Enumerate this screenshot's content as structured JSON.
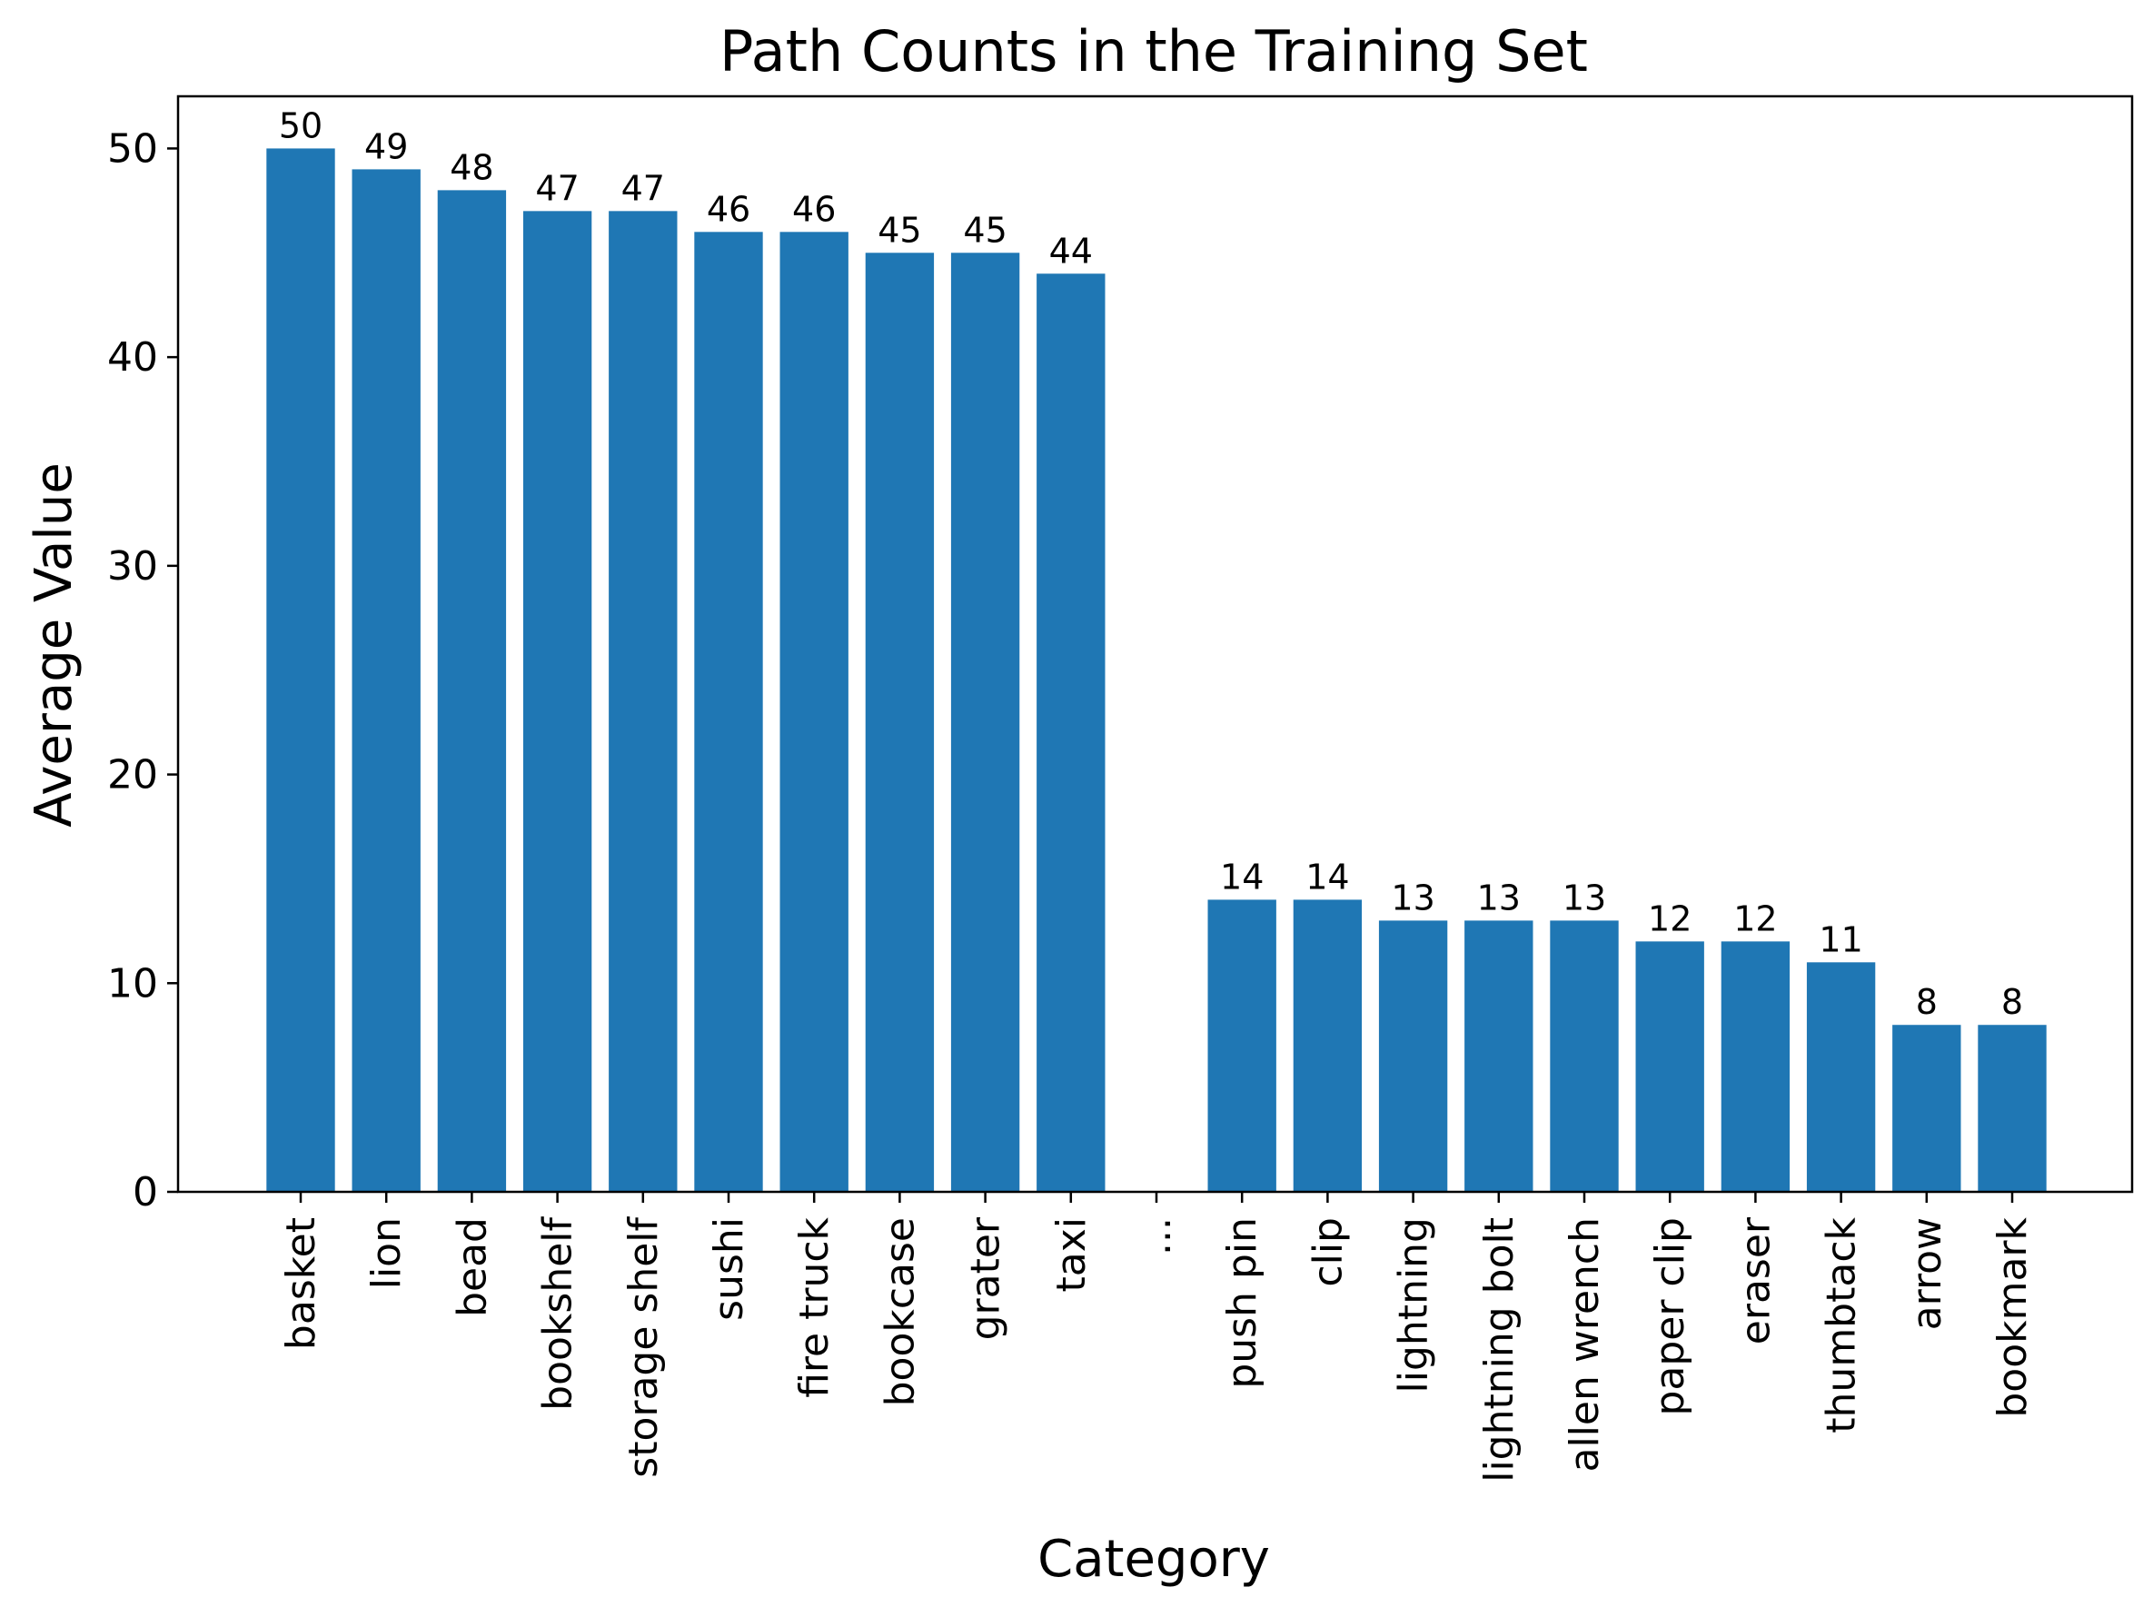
{
  "chart_data": {
    "type": "bar",
    "title": "Path Counts in the Training Set",
    "xlabel": "Category",
    "ylabel": "Average Value",
    "categories": [
      "basket",
      "lion",
      "bead",
      "bookshelf",
      "storage shelf",
      "sushi",
      "fire truck",
      "bookcase",
      "grater",
      "taxi",
      "...",
      "push pin",
      "clip",
      "lightning",
      "lightning bolt",
      "allen wrench",
      "paper clip",
      "eraser",
      "thumbtack",
      "arrow",
      "bookmark"
    ],
    "values": [
      50,
      49,
      48,
      47,
      47,
      46,
      46,
      45,
      45,
      44,
      0,
      14,
      14,
      13,
      13,
      13,
      12,
      12,
      11,
      8,
      8
    ],
    "data_labels": [
      "50",
      "49",
      "48",
      "47",
      "47",
      "46",
      "46",
      "45",
      "45",
      "44",
      "",
      "14",
      "14",
      "13",
      "13",
      "13",
      "12",
      "12",
      "11",
      "8",
      "8"
    ],
    "y_ticks": [
      "0",
      "10",
      "20",
      "30",
      "40",
      "50"
    ],
    "ylim": [
      0,
      52.5
    ],
    "grid": false,
    "bar_color": "#1f77b4",
    "axis_color": "#000000"
  }
}
